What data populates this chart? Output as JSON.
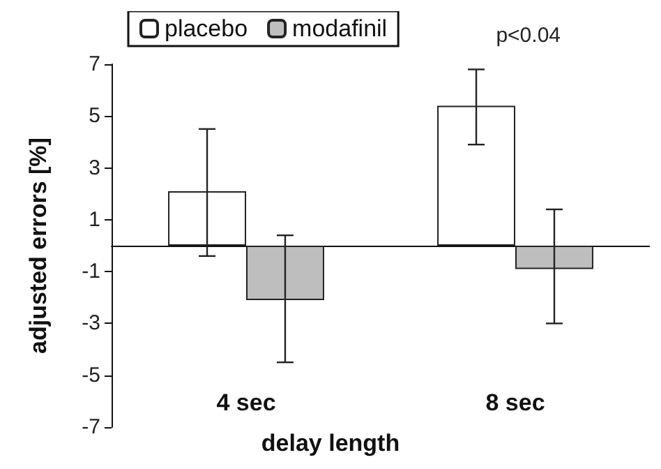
{
  "chart_data": {
    "type": "bar",
    "xlabel": "delay length",
    "ylabel": "adjusted errors [%]",
    "categories": [
      "4 sec",
      "8 sec"
    ],
    "series": [
      {
        "name": "placebo",
        "color": "#ffffff",
        "values": [
          2.1,
          5.4
        ],
        "errors": [
          [
            -0.4,
            4.5
          ],
          [
            3.9,
            6.8
          ]
        ]
      },
      {
        "name": "modafinil",
        "color": "#bebebe",
        "values": [
          -2.1,
          -0.9
        ],
        "errors": [
          [
            -4.5,
            0.4
          ],
          [
            -3.0,
            1.4
          ]
        ]
      }
    ],
    "ylim": [
      -7,
      7
    ],
    "yticks": [
      -7,
      -5,
      -3,
      -1,
      1,
      3,
      5,
      7
    ],
    "grid": false,
    "legend": "top left",
    "annotations": [
      "p<0.04"
    ]
  }
}
